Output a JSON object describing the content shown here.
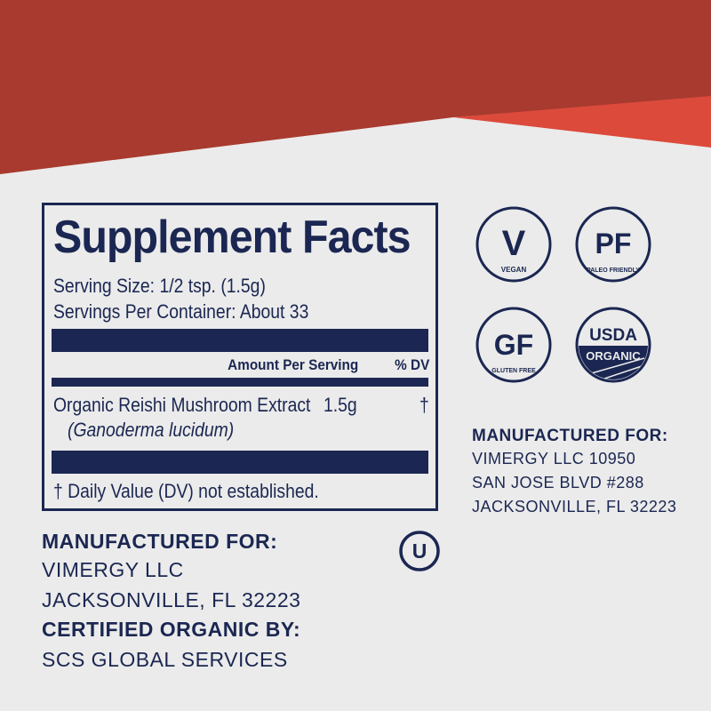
{
  "colors": {
    "primary_red": "#a83a2f",
    "accent_red": "#dc4a3b",
    "navy": "#1b2752",
    "background": "#ebebeb"
  },
  "facts": {
    "title": "Supplement Facts",
    "serving_size": "Serving Size: 1/2 tsp. (1.5g)",
    "servings_per_container": "Servings Per Container: About 33",
    "col_amount": "Amount Per Serving",
    "col_dv": "% DV",
    "ingredient": {
      "name": "Organic Reishi Mushroom Extract",
      "latin": "(Ganoderma lucidum)",
      "amount": "1.5g",
      "dv": "†"
    },
    "footnote": "† Daily Value (DV) not established."
  },
  "badges": [
    {
      "icon": "vegan-icon",
      "main": "V",
      "caption": "VEGAN"
    },
    {
      "icon": "paleo-friendly-icon",
      "main": "PF",
      "caption": "PALEO FRIENDLY"
    },
    {
      "icon": "gluten-free-icon",
      "main": "GF",
      "caption": "GLUTEN FREE"
    },
    {
      "icon": "usda-organic-icon",
      "main": "USDA",
      "caption": "ORGANIC"
    }
  ],
  "right_block": {
    "heading": "MANUFACTURED FOR:",
    "lines": [
      "VIMERGY LLC 10950",
      "SAN JOSE BLVD #288",
      "JACKSONVILLE, FL 32223"
    ]
  },
  "left_block": {
    "heading": "MANUFACTURED FOR:",
    "lines": [
      "VIMERGY LLC",
      "JACKSONVILLE, FL 32223"
    ],
    "cert_heading": "CERTIFIED ORGANIC BY:",
    "cert": "SCS GLOBAL SERVICES"
  },
  "kosher": {
    "icon": "kosher-ou-icon",
    "mark": "U"
  }
}
